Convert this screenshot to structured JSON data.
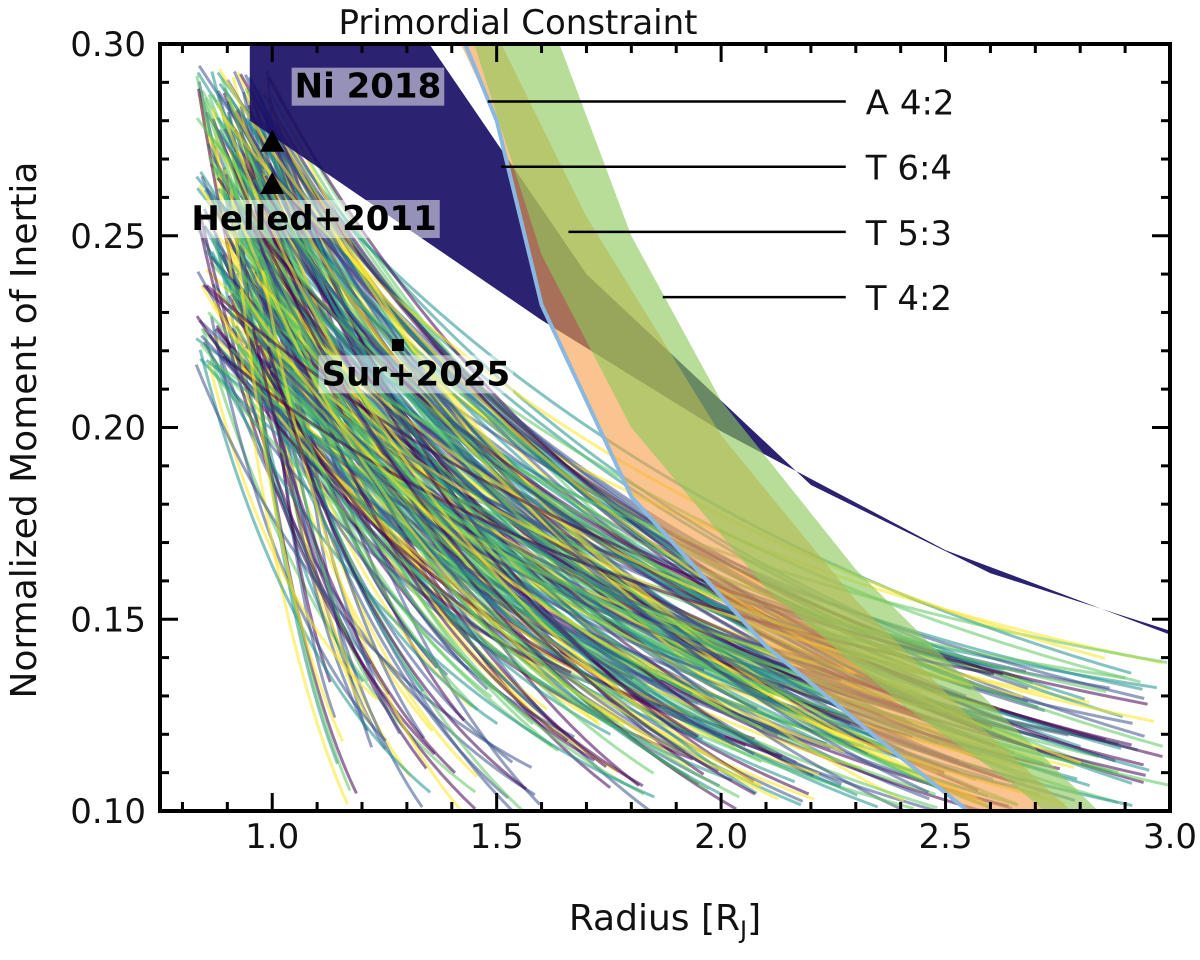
{
  "chart_data": {
    "type": "line",
    "title": "Primordial Constraint",
    "xlabel": "Radius [R",
    "xlabel_sub": "J",
    "xlabel_end": "]",
    "ylabel": "Normalized Moment of Inertia",
    "xlim": [
      0.75,
      3.0
    ],
    "ylim": [
      0.1,
      0.3
    ],
    "x_ticks": [
      1.0,
      1.5,
      2.0,
      2.5,
      3.0
    ],
    "x_tick_labels": [
      "1.0",
      "1.5",
      "2.0",
      "2.5",
      "3.0"
    ],
    "y_ticks": [
      0.1,
      0.15,
      0.2,
      0.25,
      0.3
    ],
    "y_tick_labels": [
      "0.10",
      "0.15",
      "0.20",
      "0.25",
      "0.30"
    ],
    "grid": false,
    "colormap": "viridis",
    "model_tracks": {
      "x_start_range": [
        0.83,
        1.0
      ],
      "y_start_range": [
        0.215,
        0.295
      ],
      "x_end_range": [
        1.1,
        3.0
      ],
      "y_end_range": [
        0.1,
        0.14
      ],
      "colors": [
        "#440154",
        "#3b528b",
        "#21918c",
        "#5ec962",
        "#fde725"
      ]
    },
    "bands": [
      {
        "name": "dark",
        "color": "#1a0f66",
        "upper": [
          [
            0.95,
            0.3
          ],
          [
            1.35,
            0.3
          ],
          [
            1.7,
            0.24
          ],
          [
            2.2,
            0.185
          ],
          [
            2.6,
            0.162
          ],
          [
            3.0,
            0.147
          ]
        ],
        "lower": [
          [
            0.95,
            0.28
          ],
          [
            1.3,
            0.252
          ],
          [
            1.6,
            0.228
          ],
          [
            2.0,
            0.199
          ],
          [
            2.5,
            0.168
          ],
          [
            3.0,
            0.146
          ]
        ]
      },
      {
        "name": "orange",
        "color": "#f5a04a",
        "upper": [
          [
            1.45,
            0.3
          ],
          [
            1.51,
            0.3
          ],
          [
            1.7,
            0.255
          ],
          [
            2.0,
            0.198
          ],
          [
            2.3,
            0.155
          ],
          [
            2.55,
            0.125
          ],
          [
            2.78,
            0.1
          ]
        ],
        "lower": [
          [
            1.42,
            0.3
          ],
          [
            1.5,
            0.28
          ],
          [
            1.6,
            0.232
          ],
          [
            1.8,
            0.182
          ],
          [
            2.1,
            0.143
          ],
          [
            2.4,
            0.114
          ],
          [
            2.55,
            0.1
          ]
        ]
      },
      {
        "name": "green",
        "color": "#8cc85a",
        "upper": [
          [
            1.51,
            0.3
          ],
          [
            1.64,
            0.3
          ],
          [
            1.8,
            0.25
          ],
          [
            2.0,
            0.207
          ],
          [
            2.3,
            0.163
          ],
          [
            2.6,
            0.128
          ],
          [
            2.84,
            0.1
          ]
        ],
        "lower": [
          [
            1.45,
            0.3
          ],
          [
            1.6,
            0.245
          ],
          [
            1.8,
            0.2
          ],
          [
            2.1,
            0.158
          ],
          [
            2.4,
            0.128
          ],
          [
            2.65,
            0.107
          ],
          [
            2.72,
            0.1
          ]
        ]
      }
    ],
    "boundary_line": {
      "color": "#8ab8e0",
      "points": [
        [
          1.43,
          0.3
        ],
        [
          1.5,
          0.28
        ],
        [
          1.6,
          0.232
        ],
        [
          1.8,
          0.182
        ],
        [
          2.1,
          0.143
        ],
        [
          2.4,
          0.114
        ],
        [
          2.55,
          0.1
        ]
      ]
    },
    "resonances": [
      {
        "label": "A 4:2",
        "x0": 1.48,
        "y": 0.285
      },
      {
        "label": "T 6:4",
        "x0": 1.51,
        "y": 0.268
      },
      {
        "label": "T 5:3",
        "x0": 1.66,
        "y": 0.251
      },
      {
        "label": "T 4:2",
        "x0": 1.87,
        "y": 0.234
      }
    ],
    "resonance_label_x": 2.3,
    "measurements": [
      {
        "label": "Ni 2018",
        "marker": "none",
        "label_x": 1.05,
        "label_y": 0.286
      },
      {
        "label": "Helled+2011",
        "marker": "triangle",
        "x": [
          1.0,
          1.0
        ],
        "y": [
          0.2745,
          0.2635
        ],
        "label_x": 0.82,
        "label_y": 0.2515
      },
      {
        "label": "Sur+2025",
        "marker": "square",
        "x": [
          1.28
        ],
        "y": [
          0.2215
        ],
        "label_x": 1.11,
        "label_y": 0.211
      }
    ]
  }
}
